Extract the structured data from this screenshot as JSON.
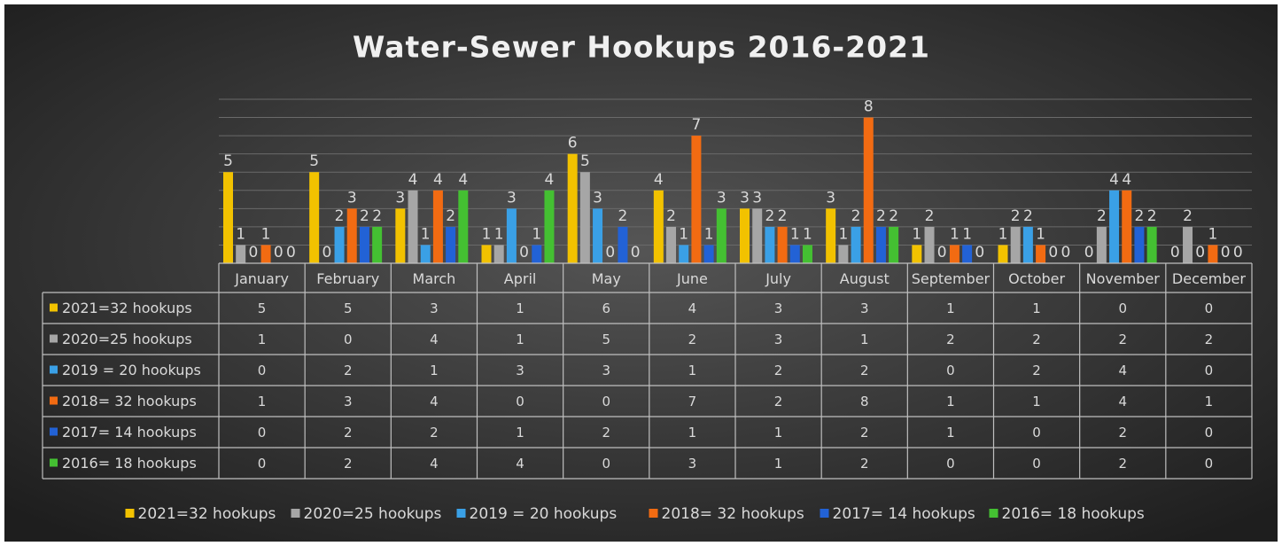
{
  "chart_data": {
    "type": "bar",
    "title": "Water-Sewer Hookups 2016-2021",
    "categories": [
      "January",
      "February",
      "March",
      "April",
      "May",
      "June",
      "July",
      "August",
      "September",
      "October",
      "November",
      "December"
    ],
    "series": [
      {
        "name": "2021=32 hookups",
        "color": "#f2c200",
        "values": [
          5,
          5,
          3,
          1,
          6,
          4,
          3,
          3,
          1,
          1,
          0,
          0
        ]
      },
      {
        "name": "2020=25 hookups",
        "color": "#a6a6a6",
        "values": [
          1,
          0,
          4,
          1,
          5,
          2,
          3,
          1,
          2,
          2,
          2,
          2
        ]
      },
      {
        "name": "2019 = 20 hookups",
        "color": "#3aa0e6",
        "values": [
          0,
          2,
          1,
          3,
          3,
          1,
          2,
          2,
          0,
          2,
          4,
          0
        ]
      },
      {
        "name": "2018= 32 hookups",
        "color": "#f26b12",
        "values": [
          1,
          3,
          4,
          0,
          0,
          7,
          2,
          8,
          1,
          1,
          4,
          1
        ]
      },
      {
        "name": "2017= 14 hookups",
        "color": "#2262d6",
        "values": [
          0,
          2,
          2,
          1,
          2,
          1,
          1,
          2,
          1,
          0,
          2,
          0
        ]
      },
      {
        "name": "2016= 18 hookups",
        "color": "#44c032",
        "values": [
          0,
          2,
          4,
          4,
          0,
          3,
          1,
          2,
          0,
          0,
          2,
          0
        ]
      }
    ],
    "ylim": [
      0,
      9
    ],
    "yticks": [
      0,
      1,
      2,
      3,
      4,
      5,
      6,
      7,
      8,
      9
    ],
    "grid": true,
    "data_table": true,
    "legend": "bottom"
  }
}
